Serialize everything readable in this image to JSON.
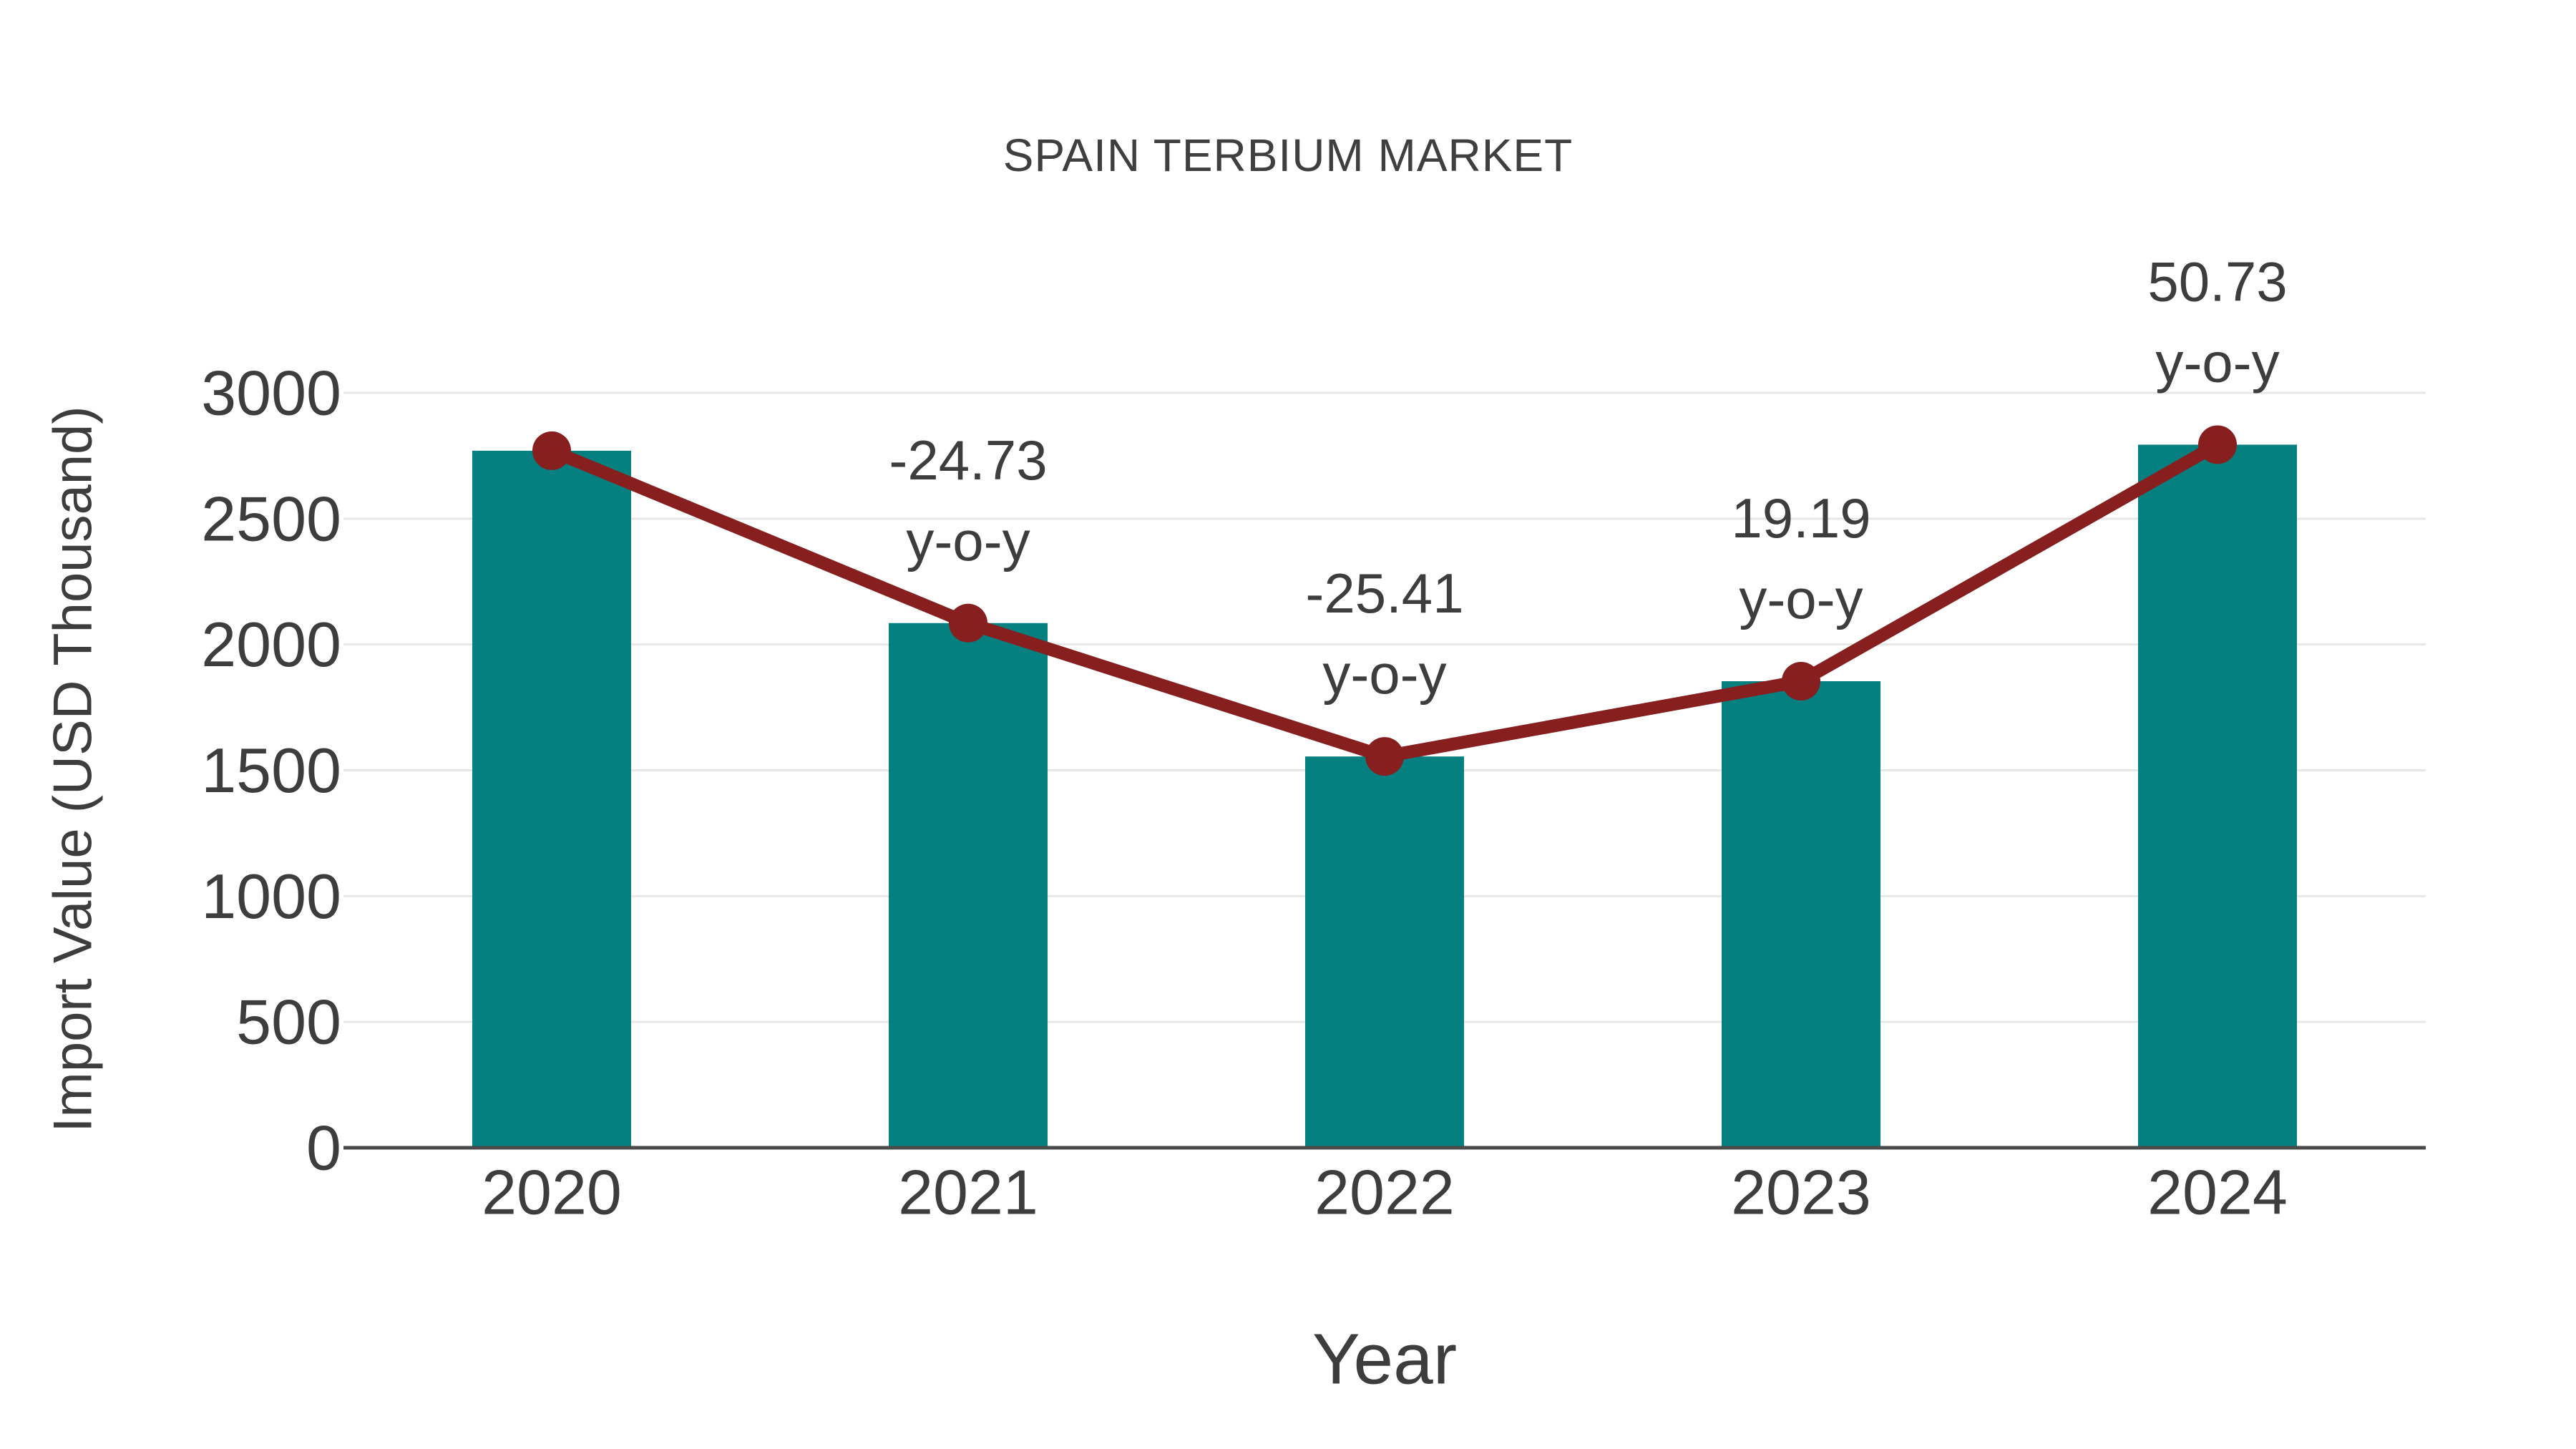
{
  "chart_data": {
    "type": "bar",
    "title": "SPAIN TERBIUM MARKET",
    "xlabel": "Year",
    "ylabel": "Import Value (USD Thousand)",
    "categories": [
      "2020",
      "2021",
      "2022",
      "2023",
      "2024"
    ],
    "series": [
      {
        "name": "Import Value (USD Thousand)",
        "type": "bar",
        "color": "#058080",
        "values": [
          2770,
          2085,
          1555,
          1854,
          2794
        ]
      },
      {
        "name": "Trend line",
        "type": "line",
        "color": "#871f1f",
        "values": [
          2770,
          2085,
          1555,
          1854,
          2794
        ]
      }
    ],
    "annotations": [
      {
        "category": "2021",
        "value_line": "-24.73",
        "suffix_line": "y-o-y"
      },
      {
        "category": "2022",
        "value_line": "-25.41",
        "suffix_line": "y-o-y"
      },
      {
        "category": "2023",
        "value_line": "19.19",
        "suffix_line": "y-o-y"
      },
      {
        "category": "2024",
        "value_line": "50.73",
        "suffix_line": "y-o-y"
      }
    ],
    "yticks": [
      "0",
      "500",
      "1000",
      "1500",
      "2000",
      "2500",
      "3000"
    ],
    "ylim": [
      0,
      3000
    ],
    "grid": true,
    "legend": false,
    "colors": {
      "bar": "#058080",
      "line": "#871f1f",
      "marker": "#871f1f",
      "gridline": "#e7e7e7",
      "axis_line": "#4a4a4a",
      "text": "#3d3d3d"
    }
  }
}
